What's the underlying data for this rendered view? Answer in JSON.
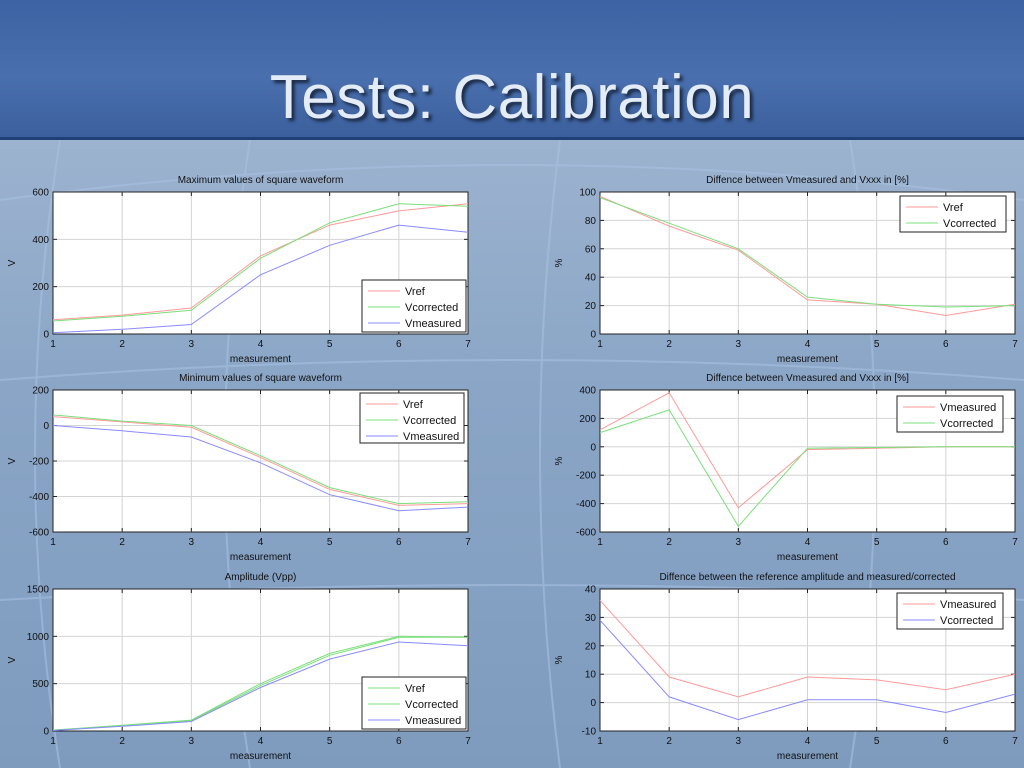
{
  "slide": {
    "title": "Tests: Calibration"
  },
  "chart_data": [
    {
      "type": "line",
      "title": "Maximum values of square waveform",
      "xlabel": "measurement",
      "ylabel": "V",
      "x": [
        1,
        2,
        3,
        4,
        5,
        6,
        7
      ],
      "xlim": [
        1,
        7
      ],
      "ylim": [
        0,
        600
      ],
      "yticks": [
        0,
        200,
        400,
        600
      ],
      "grid": true,
      "legend": "bottom-right",
      "series": [
        {
          "name": "Vref",
          "color": "#ff9a9a",
          "values": [
            60,
            80,
            110,
            330,
            460,
            520,
            550
          ]
        },
        {
          "name": "Vcorrected",
          "color": "#7ae07a",
          "values": [
            55,
            75,
            100,
            320,
            470,
            550,
            540
          ]
        },
        {
          "name": "Vmeasured",
          "color": "#8a8aff",
          "values": [
            5,
            20,
            40,
            250,
            375,
            460,
            430
          ]
        }
      ]
    },
    {
      "type": "line",
      "title": "Diffence between Vmeasured and Vxxx in [%]",
      "xlabel": "measurement",
      "ylabel": "%",
      "x": [
        1,
        2,
        3,
        4,
        5,
        6,
        7
      ],
      "xlim": [
        1,
        7
      ],
      "ylim": [
        0,
        100
      ],
      "yticks": [
        0,
        20,
        40,
        60,
        80,
        100
      ],
      "grid": true,
      "legend": "top-right",
      "series": [
        {
          "name": "Vref",
          "color": "#ff9a9a",
          "values": [
            97,
            76,
            59,
            24,
            21,
            13,
            21
          ]
        },
        {
          "name": "Vcorrected",
          "color": "#7ae07a",
          "values": [
            96,
            78,
            60,
            26,
            21,
            19,
            20
          ]
        }
      ]
    },
    {
      "type": "line",
      "title": "Minimum values of square waveform",
      "xlabel": "measurement",
      "ylabel": "V",
      "x": [
        1,
        2,
        3,
        4,
        5,
        6,
        7
      ],
      "xlim": [
        1,
        7
      ],
      "ylim": [
        -600,
        200
      ],
      "yticks": [
        -600,
        -400,
        -200,
        0,
        200
      ],
      "grid": true,
      "legend": "top-right",
      "series": [
        {
          "name": "Vref",
          "color": "#ff9a9a",
          "values": [
            50,
            20,
            -10,
            -180,
            -360,
            -450,
            -440
          ]
        },
        {
          "name": "Vcorrected",
          "color": "#7ae07a",
          "values": [
            60,
            25,
            0,
            -170,
            -350,
            -440,
            -430
          ]
        },
        {
          "name": "Vmeasured",
          "color": "#8a8aff",
          "values": [
            0,
            -30,
            -65,
            -210,
            -390,
            -480,
            -460
          ]
        }
      ]
    },
    {
      "type": "line",
      "title": "Diffence between Vmeasured and Vxxx in [%]",
      "xlabel": "measurement",
      "ylabel": "%",
      "x": [
        1,
        2,
        3,
        4,
        5,
        6,
        7
      ],
      "xlim": [
        1,
        7
      ],
      "ylim": [
        -600,
        400
      ],
      "yticks": [
        -600,
        -400,
        -200,
        0,
        200,
        400
      ],
      "grid": true,
      "legend": "top-right",
      "series": [
        {
          "name": "Vmeasured",
          "color": "#ff9a9a",
          "values": [
            120,
            380,
            -430,
            -20,
            -10,
            0,
            0
          ]
        },
        {
          "name": "Vcorrected",
          "color": "#7ae07a",
          "values": [
            100,
            260,
            -560,
            -10,
            -5,
            0,
            0
          ]
        }
      ]
    },
    {
      "type": "line",
      "title": "Amplitude (Vpp)",
      "xlabel": "measurement",
      "ylabel": "V",
      "x": [
        1,
        2,
        3,
        4,
        5,
        6,
        7
      ],
      "xlim": [
        1,
        7
      ],
      "ylim": [
        0,
        1500
      ],
      "yticks": [
        0,
        500,
        1000,
        1500
      ],
      "grid": true,
      "legend": "bottom-right",
      "series": [
        {
          "name": "Vref",
          "color": "#7ae07a",
          "values": [
            10,
            55,
            110,
            480,
            800,
            990,
            990
          ]
        },
        {
          "name": "Vcorrected",
          "color": "#7ae07a",
          "values": [
            10,
            60,
            115,
            500,
            820,
            1000,
            990
          ]
        },
        {
          "name": "Vmeasured",
          "color": "#8a8aff",
          "values": [
            5,
            50,
            100,
            460,
            760,
            940,
            900
          ]
        }
      ]
    },
    {
      "type": "line",
      "title": "Diffence between the reference amplitude and measured/corrected",
      "xlabel": "measurement",
      "ylabel": "%",
      "x": [
        1,
        2,
        3,
        4,
        5,
        6,
        7
      ],
      "xlim": [
        1,
        7
      ],
      "ylim": [
        -10,
        40
      ],
      "yticks": [
        -10,
        0,
        10,
        20,
        30,
        40
      ],
      "grid": true,
      "legend": "top-right",
      "series": [
        {
          "name": "Vmeasured",
          "color": "#ff9a9a",
          "values": [
            36,
            9,
            2,
            9,
            8,
            4.5,
            10
          ]
        },
        {
          "name": "Vcorrected",
          "color": "#8a8aff",
          "values": [
            29,
            2,
            -6,
            1,
            1,
            -3.5,
            3
          ]
        }
      ]
    }
  ]
}
